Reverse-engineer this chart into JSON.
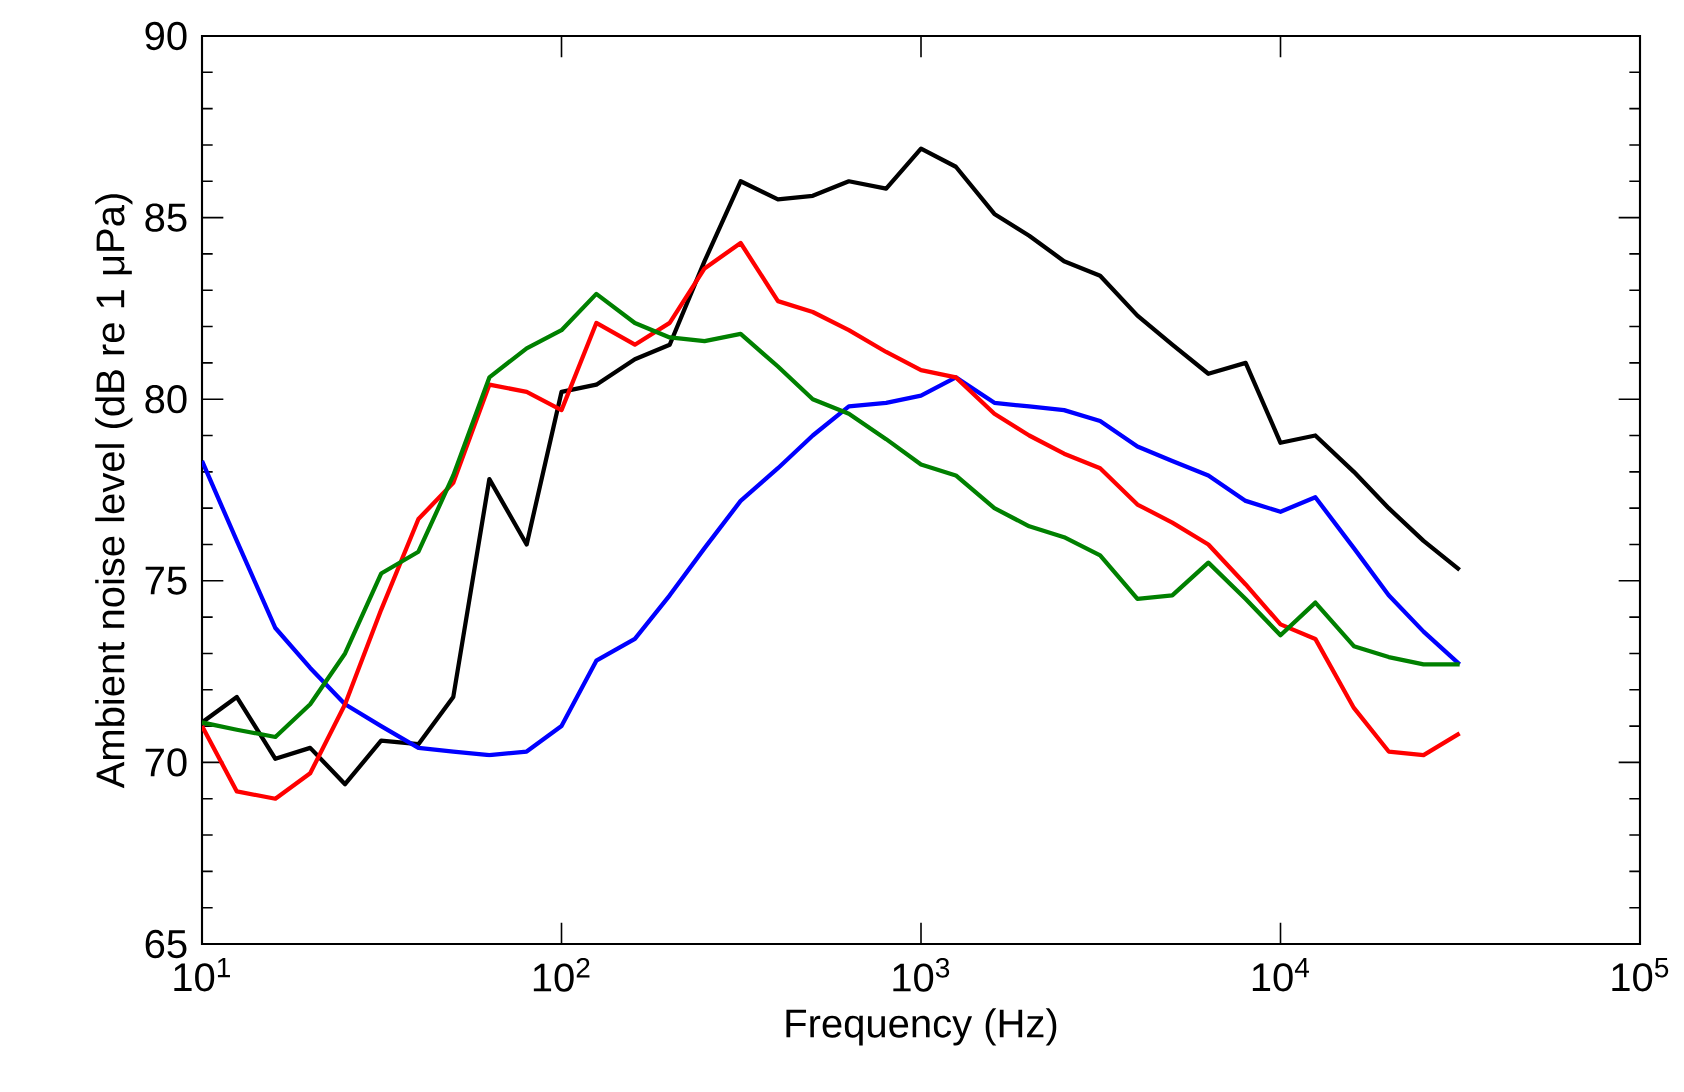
{
  "chart_data": {
    "type": "line",
    "xlabel": "Frequency (Hz)",
    "ylabel": "Ambient noise level (dB re 1 μPa)",
    "log": "x",
    "grid": false,
    "marker": "none",
    "line_style": "solid",
    "xlim": [
      10,
      100000
    ],
    "ylim": [
      65,
      90
    ],
    "xticks": [
      {
        "value": 10,
        "label": "10$^{1}$"
      },
      {
        "value": 100,
        "label": "10$^{2}$"
      },
      {
        "value": 1000,
        "label": "10$^{3}$"
      },
      {
        "value": 10000,
        "label": "10$^{4}$"
      },
      {
        "value": 100000,
        "label": "10$^{5}$"
      }
    ],
    "yticks": [
      65,
      70,
      75,
      80,
      85,
      90
    ],
    "x": [
      10,
      12.5,
      16,
      20,
      25,
      31.5,
      40,
      50,
      63,
      80,
      100,
      125,
      160,
      200,
      250,
      315,
      400,
      500,
      630,
      800,
      1000,
      1250,
      1600,
      2000,
      2500,
      3150,
      4000,
      5000,
      6300,
      8000,
      10000,
      12500,
      16000,
      20000,
      25000,
      31500
    ],
    "series": [
      {
        "color": "#000000",
        "values": [
          71.1,
          71.8,
          70.1,
          70.4,
          69.4,
          70.6,
          70.5,
          71.8,
          77.8,
          76.0,
          80.2,
          80.4,
          81.1,
          81.5,
          83.8,
          86.0,
          85.5,
          85.6,
          86.0,
          85.8,
          86.9,
          86.4,
          85.1,
          84.5,
          83.8,
          83.4,
          82.3,
          81.5,
          80.7,
          81.0,
          78.8,
          79.0,
          78.0,
          77.0,
          76.1,
          75.3
        ]
      },
      {
        "color": "#0000ff",
        "values": [
          78.3,
          76.1,
          73.7,
          72.6,
          71.6,
          71.0,
          70.4,
          70.3,
          70.2,
          70.3,
          71.0,
          72.8,
          73.4,
          74.6,
          75.9,
          77.2,
          78.1,
          79.0,
          79.8,
          79.9,
          80.1,
          80.6,
          79.9,
          79.8,
          79.7,
          79.4,
          78.7,
          78.3,
          77.9,
          77.2,
          76.9,
          77.3,
          75.9,
          74.6,
          73.6,
          72.7
        ]
      },
      {
        "color": "#ff0000",
        "values": [
          71.0,
          69.2,
          69.0,
          69.7,
          71.6,
          74.2,
          76.7,
          77.7,
          80.4,
          80.2,
          79.7,
          82.1,
          81.5,
          82.1,
          83.6,
          84.3,
          82.7,
          82.4,
          81.9,
          81.3,
          80.8,
          80.6,
          79.6,
          79.0,
          78.5,
          78.1,
          77.1,
          76.6,
          76.0,
          74.9,
          73.8,
          73.4,
          71.5,
          70.3,
          70.2,
          70.8
        ]
      },
      {
        "color": "#008000",
        "values": [
          71.1,
          70.9,
          70.7,
          71.6,
          73.0,
          75.2,
          75.8,
          77.9,
          80.6,
          81.4,
          81.9,
          82.9,
          82.1,
          81.7,
          81.6,
          81.8,
          80.9,
          80.0,
          79.6,
          78.9,
          78.2,
          77.9,
          77.0,
          76.5,
          76.2,
          75.7,
          74.5,
          74.6,
          75.5,
          74.5,
          73.5,
          74.4,
          73.2,
          72.9,
          72.7,
          72.7
        ]
      }
    ]
  }
}
